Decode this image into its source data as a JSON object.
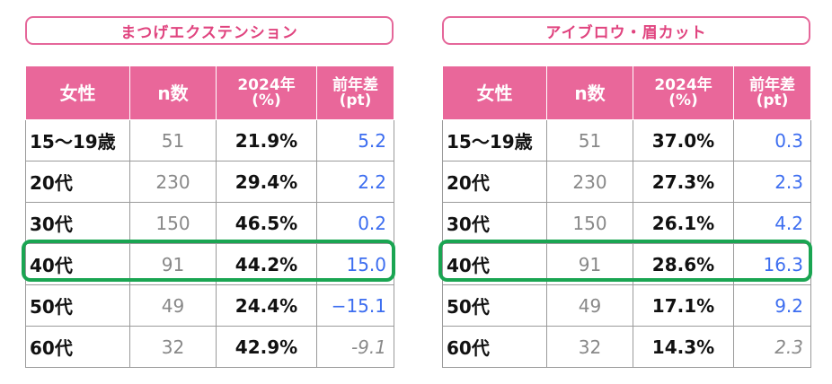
{
  "panels": [
    {
      "title": "まつげエクステンション",
      "headers": {
        "gender": "女性",
        "n": "n数",
        "year_line1": "2024年",
        "year_line2": "(%)",
        "diff_line1": "前年差",
        "diff_line2": "(pt)"
      },
      "rows": [
        {
          "label": "15〜19歳",
          "n": "51",
          "pct": "21.9%",
          "diff": "5.2"
        },
        {
          "label": "20代",
          "n": "230",
          "pct": "29.4%",
          "diff": "2.2"
        },
        {
          "label": "30代",
          "n": "150",
          "pct": "46.5%",
          "diff": "0.2"
        },
        {
          "label": "40代",
          "n": "91",
          "pct": "44.2%",
          "diff": "15.0"
        },
        {
          "label": "50代",
          "n": "49",
          "pct": "24.4%",
          "diff": "−15.1"
        },
        {
          "label": "60代",
          "n": "32",
          "pct": "42.9%",
          "diff": "-9.1"
        }
      ]
    },
    {
      "title": "アイブロウ・眉カット",
      "headers": {
        "gender": "女性",
        "n": "n数",
        "year_line1": "2024年",
        "year_line2": "(%)",
        "diff_line1": "前年差",
        "diff_line2": "(pt)"
      },
      "rows": [
        {
          "label": "15〜19歳",
          "n": "51",
          "pct": "37.0%",
          "diff": "0.3"
        },
        {
          "label": "20代",
          "n": "230",
          "pct": "27.3%",
          "diff": "2.3"
        },
        {
          "label": "30代",
          "n": "150",
          "pct": "26.1%",
          "diff": "4.2"
        },
        {
          "label": "40代",
          "n": "91",
          "pct": "28.6%",
          "diff": "16.3"
        },
        {
          "label": "50代",
          "n": "49",
          "pct": "17.1%",
          "diff": "9.2"
        },
        {
          "label": "60代",
          "n": "32",
          "pct": "14.3%",
          "diff": "2.3"
        }
      ]
    }
  ],
  "colors": {
    "header_pink": "#e9679a",
    "title_pink": "#e0447f",
    "highlight_green": "#1aa552",
    "diff_blue": "#3c6df0"
  }
}
